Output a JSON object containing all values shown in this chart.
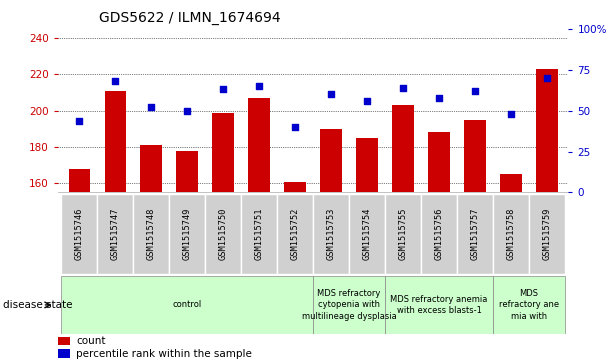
{
  "title": "GDS5622 / ILMN_1674694",
  "samples": [
    "GSM1515746",
    "GSM1515747",
    "GSM1515748",
    "GSM1515749",
    "GSM1515750",
    "GSM1515751",
    "GSM1515752",
    "GSM1515753",
    "GSM1515754",
    "GSM1515755",
    "GSM1515756",
    "GSM1515757",
    "GSM1515758",
    "GSM1515759"
  ],
  "bar_values": [
    168,
    211,
    181,
    178,
    199,
    207,
    161,
    190,
    185,
    203,
    188,
    195,
    165,
    223
  ],
  "dot_values": [
    44,
    68,
    52,
    50,
    63,
    65,
    40,
    60,
    56,
    64,
    58,
    62,
    48,
    70
  ],
  "ylim_left": [
    155,
    245
  ],
  "ylim_right": [
    0,
    100
  ],
  "yticks_left": [
    160,
    180,
    200,
    220,
    240
  ],
  "yticks_right": [
    0,
    25,
    50,
    75,
    100
  ],
  "bar_color": "#cc0000",
  "dot_color": "#0000cc",
  "bar_width": 0.6,
  "disease_groups": [
    {
      "label": "control",
      "indices": [
        0,
        1,
        2,
        3,
        4,
        5,
        6
      ]
    },
    {
      "label": "MDS refractory\ncytopenia with\nmultilineage dysplasia",
      "indices": [
        7,
        8
      ]
    },
    {
      "label": "MDS refractory anemia\nwith excess blasts-1",
      "indices": [
        9,
        10,
        11
      ]
    },
    {
      "label": "MDS\nrefractory ane\nmia with",
      "indices": [
        12,
        13
      ]
    }
  ],
  "disease_state_label": "disease state",
  "group_color": "#ccffcc",
  "label_bg_color": "#d0d0d0",
  "legend_count_label": "count",
  "legend_pct_label": "percentile rank within the sample"
}
